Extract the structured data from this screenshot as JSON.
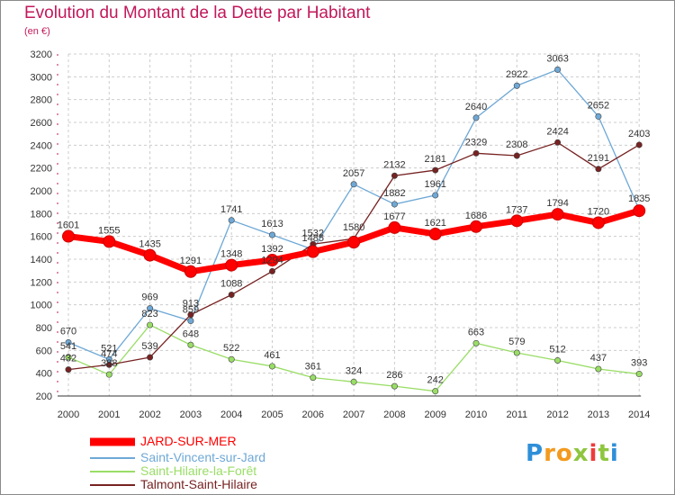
{
  "title": "Evolution du Montant de la Dette par Habitant",
  "subtitle": "(en €)",
  "logo_text": "Proxiti",
  "chart_data": {
    "type": "line",
    "title": "Evolution du Montant de la Dette par Habitant",
    "ylabel": "(en €)",
    "x": [
      "2000",
      "2001",
      "2002",
      "2003",
      "2004",
      "2005",
      "2006",
      "2007",
      "2008",
      "2009",
      "2010",
      "2011",
      "2012",
      "2013",
      "2014"
    ],
    "ylim": [
      200,
      3200
    ],
    "yticks": [
      "200",
      "400",
      "600",
      "800",
      "1000",
      "1200",
      "1400",
      "1600",
      "1800",
      "2000",
      "2200",
      "2400",
      "2600",
      "2800",
      "3000",
      "3200"
    ],
    "grid": true,
    "legend_position": "bottom-left",
    "series": [
      {
        "name": "JARD-SUR-MER",
        "color": "#ff0000",
        "values": [
          1601,
          1555,
          1435,
          1291,
          1348,
          1392,
          1466,
          1549,
          1677,
          1621,
          1686,
          1737,
          1794,
          1720,
          1825
        ],
        "labels": [
          "1601",
          "1555",
          "1435",
          "1291",
          "1348",
          "1392",
          "",
          "",
          "1677",
          "1621",
          "1686",
          "1737",
          "1794",
          "1720",
          ""
        ]
      },
      {
        "name": "Saint-Vincent-sur-Jard",
        "color": "#6ea8d6",
        "values": [
          670,
          521,
          969,
          859,
          1741,
          1613,
          1485,
          2057,
          1882,
          1961,
          2640,
          2922,
          3063,
          2652,
          1835
        ],
        "labels": [
          "670",
          "521",
          "969",
          "859",
          "1741",
          "1613",
          "1485",
          "2057",
          "1882",
          "1961",
          "2640",
          "2922",
          "3063",
          "2652",
          "1835"
        ]
      },
      {
        "name": "Saint-Hilaire-la-Forêt",
        "color": "#99dd66",
        "values": [
          541,
          388,
          823,
          648,
          522,
          461,
          361,
          324,
          286,
          242,
          663,
          579,
          512,
          437,
          393
        ],
        "labels": [
          "541",
          "388",
          "823",
          "648",
          "522",
          "461",
          "361",
          "324",
          "286",
          "242",
          "663",
          "579",
          "512",
          "437",
          "393"
        ]
      },
      {
        "name": "Talmont-Saint-Hilaire",
        "color": "#772222",
        "values": [
          432,
          474,
          539,
          913,
          1088,
          1294,
          1532,
          1580,
          2132,
          2181,
          2329,
          2308,
          2424,
          2191,
          2403
        ],
        "labels": [
          "432",
          "474",
          "539",
          "913",
          "1088",
          "1294",
          "1532",
          "1580",
          "2132",
          "2181",
          "2329",
          "2308",
          "2424",
          "2191",
          "2403"
        ]
      }
    ]
  }
}
